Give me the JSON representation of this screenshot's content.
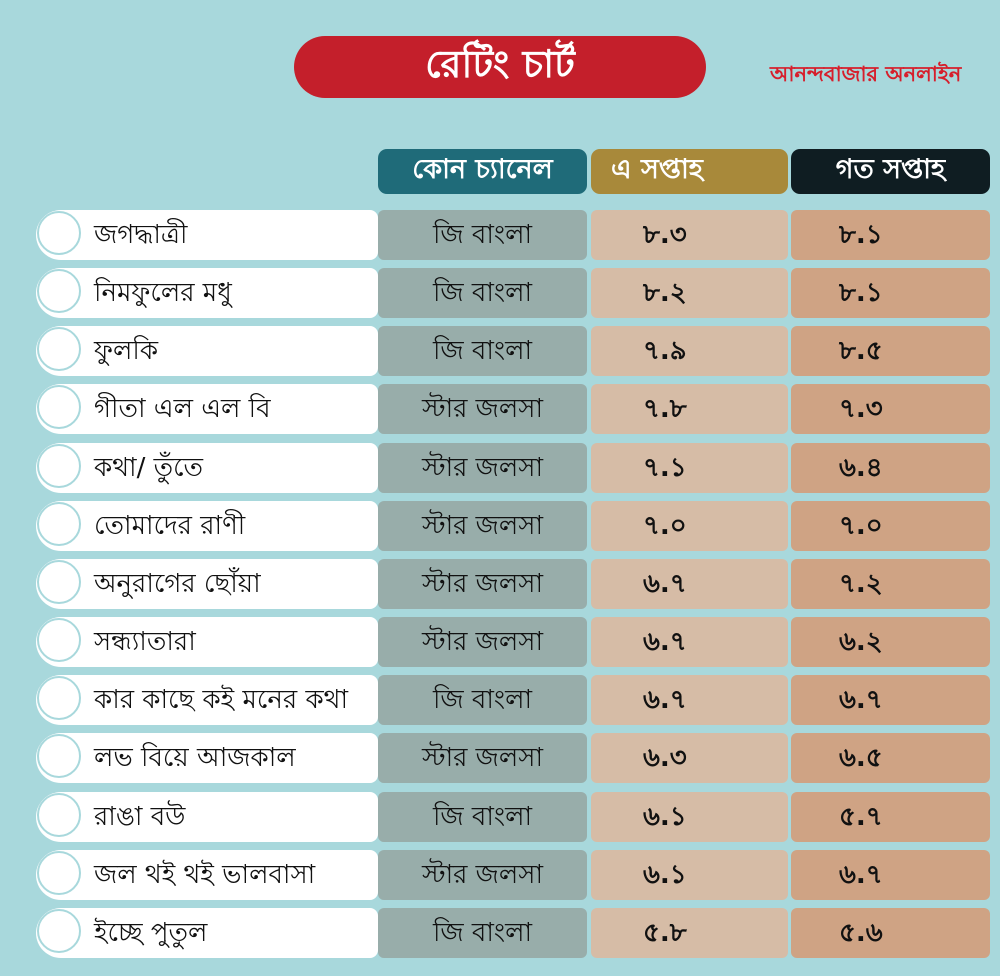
{
  "title": "রেটিং চার্ট",
  "brand": "আনন্দবাজার অনলাইন",
  "headers": {
    "channel": "কোন চ্যানেল",
    "this_week": "এ সপ্তাহ",
    "last_week": "গত সপ্তাহ"
  },
  "colors": {
    "background": "#a8d8dc",
    "title_pill": "#c41f2b",
    "brand_text": "#d61f2c",
    "header_channel": "#1f6b79",
    "header_this_week": "#a8893a",
    "header_last_week": "#0f1d22",
    "cell_channel": "#98adaa",
    "cell_this_week": "#d6bca6",
    "cell_last_week": "#cfa384"
  },
  "chart_data": {
    "type": "table",
    "title": "রেটিং চার্ট",
    "columns": [
      "",
      "কোন চ্যানেল",
      "এ সপ্তাহ",
      "গত সপ্তাহ"
    ],
    "rows": [
      {
        "show": "জগদ্ধাত্রী",
        "channel": "জি বাংলা",
        "this_week": "৮.৩",
        "last_week": "৮.১"
      },
      {
        "show": "নিমফুলের মধু",
        "channel": "জি বাংলা",
        "this_week": "৮.২",
        "last_week": "৮.১"
      },
      {
        "show": "ফুলকি",
        "channel": "জি বাংলা",
        "this_week": "৭.৯",
        "last_week": "৮.৫"
      },
      {
        "show": "গীতা এল এল বি",
        "channel": "স্টার জলসা",
        "this_week": "৭.৮",
        "last_week": "৭.৩"
      },
      {
        "show": "কথা/ তুঁতে",
        "channel": "স্টার জলসা",
        "this_week": "৭.১",
        "last_week": "৬.৪"
      },
      {
        "show": "তোমাদের রাণী",
        "channel": "স্টার জলসা",
        "this_week": "৭.০",
        "last_week": "৭.০"
      },
      {
        "show": "অনুরাগের ছোঁয়া",
        "channel": "স্টার জলসা",
        "this_week": "৬.৭",
        "last_week": "৭.২"
      },
      {
        "show": "সন্ধ্যাতারা",
        "channel": "স্টার জলসা",
        "this_week": "৬.৭",
        "last_week": "৬.২"
      },
      {
        "show": "কার কাছে কই মনের কথা",
        "channel": "জি বাংলা",
        "this_week": "৬.৭",
        "last_week": "৬.৭"
      },
      {
        "show": "লভ বিয়ে আজকাল",
        "channel": "স্টার জলসা",
        "this_week": "৬.৩",
        "last_week": "৬.৫"
      },
      {
        "show": "রাঙা বউ",
        "channel": "জি বাংলা",
        "this_week": "৬.১",
        "last_week": "৫.৭"
      },
      {
        "show": "জল থই থই ভালবাসা",
        "channel": "স্টার জলসা",
        "this_week": "৬.১",
        "last_week": "৬.৭"
      },
      {
        "show": "ইচ্ছে পুতুল",
        "channel": "জি বাংলা",
        "this_week": "৫.৮",
        "last_week": "৫.৬"
      }
    ]
  }
}
